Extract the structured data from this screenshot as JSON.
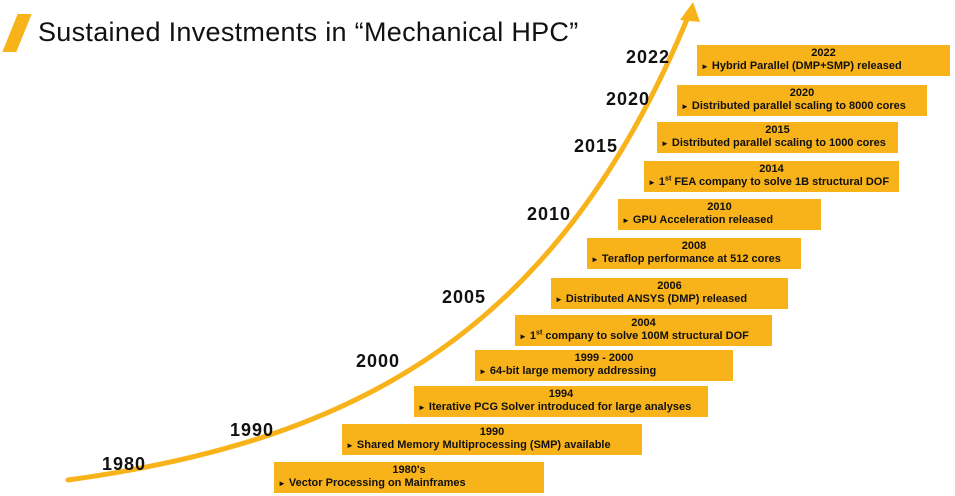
{
  "title": "Sustained Investments in “Mechanical HPC”",
  "accent_color": "#F8B21A",
  "bullet": "►",
  "axis_years": [
    "1980",
    "1990",
    "2000",
    "2005",
    "2010",
    "2015",
    "2020",
    "2022"
  ],
  "milestones": [
    {
      "year": "1980's",
      "text": "Vector Processing on Mainframes"
    },
    {
      "year": "1990",
      "text": "Shared Memory Multiprocessing (SMP) available"
    },
    {
      "year": "1994",
      "text": "Iterative PCG Solver introduced for large analyses"
    },
    {
      "year": "1999 - 2000",
      "text": "64-bit large memory addressing"
    },
    {
      "year": "2004",
      "text_pre": "1",
      "text_sup": "st",
      "text_post": " company to solve 100M structural DOF"
    },
    {
      "year": "2006",
      "text": "Distributed ANSYS (DMP) released"
    },
    {
      "year": "2008",
      "text": "Teraflop performance at 512 cores"
    },
    {
      "year": "2010",
      "text": "GPU Acceleration released"
    },
    {
      "year": "2014",
      "text_pre": "1",
      "text_sup": "st",
      "text_post": " FEA company to solve 1B structural DOF"
    },
    {
      "year": "2015",
      "text": "Distributed parallel scaling to 1000 cores"
    },
    {
      "year": "2020",
      "text": "Distributed parallel scaling to 8000 cores"
    },
    {
      "year": "2022",
      "text": "Hybrid Parallel (DMP+SMP) released"
    }
  ]
}
